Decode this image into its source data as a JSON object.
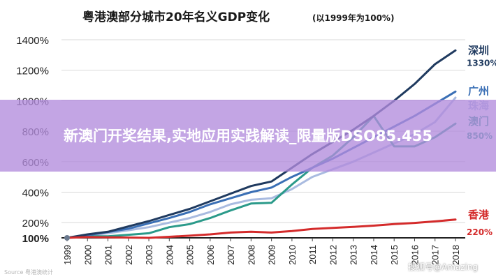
{
  "chart_data": {
    "type": "line",
    "title": "粤港澳部分城市20年名义GDP变化",
    "subtitle": "(以1999年为100%)",
    "x": [
      "1999",
      "2000",
      "2001",
      "2002",
      "2003",
      "2004",
      "2005",
      "2006",
      "2007",
      "2008",
      "2009",
      "2010",
      "2011",
      "2012",
      "2013",
      "2014",
      "2015",
      "2016",
      "2017",
      "2018"
    ],
    "y_ticks": [
      "100%",
      "200%",
      "400%",
      "600%",
      "800%",
      "1000%",
      "1200%",
      "1400%"
    ],
    "y_tick_values": [
      100,
      200,
      400,
      600,
      800,
      1000,
      1200,
      1400
    ],
    "ylim": [
      0,
      1500
    ],
    "series": [
      {
        "name": "深圳",
        "end_label": "1330%",
        "color": "#1f3a5f",
        "values": [
          100,
          123,
          140,
          175,
          210,
          250,
          290,
          340,
          390,
          440,
          470,
          560,
          650,
          730,
          810,
          900,
          1000,
          1110,
          1240,
          1330
        ]
      },
      {
        "name": "广州",
        "color": "#3a6fb5",
        "values": [
          100,
          118,
          138,
          160,
          195,
          230,
          270,
          320,
          360,
          400,
          430,
          500,
          560,
          620,
          690,
          760,
          830,
          900,
          980,
          1060
        ]
      },
      {
        "name": "珠海",
        "color": "#a9bbe0",
        "values": [
          100,
          115,
          130,
          150,
          170,
          200,
          230,
          270,
          320,
          350,
          360,
          420,
          500,
          550,
          600,
          660,
          720,
          780,
          860,
          1020
        ]
      },
      {
        "name": "澳门",
        "end_label": "850%",
        "color": "#2b9a8a",
        "values": [
          100,
          110,
          110,
          120,
          130,
          170,
          190,
          230,
          280,
          325,
          330,
          450,
          560,
          640,
          760,
          900,
          700,
          700,
          760,
          850
        ]
      },
      {
        "name": "香港",
        "end_label": "220%",
        "color": "#d42b2b",
        "values": [
          100,
          105,
          103,
          102,
          100,
          107,
          114,
          123,
          135,
          140,
          135,
          145,
          158,
          165,
          172,
          180,
          190,
          198,
          208,
          220
        ]
      }
    ],
    "grid": true
  },
  "overlay": {
    "headline": "新澳门开奖结果,实地应用实践解读_限量版DSO85.455",
    "watermark": "搜狐号@Amazing",
    "source_mark": "Source 粤港澳统计"
  }
}
